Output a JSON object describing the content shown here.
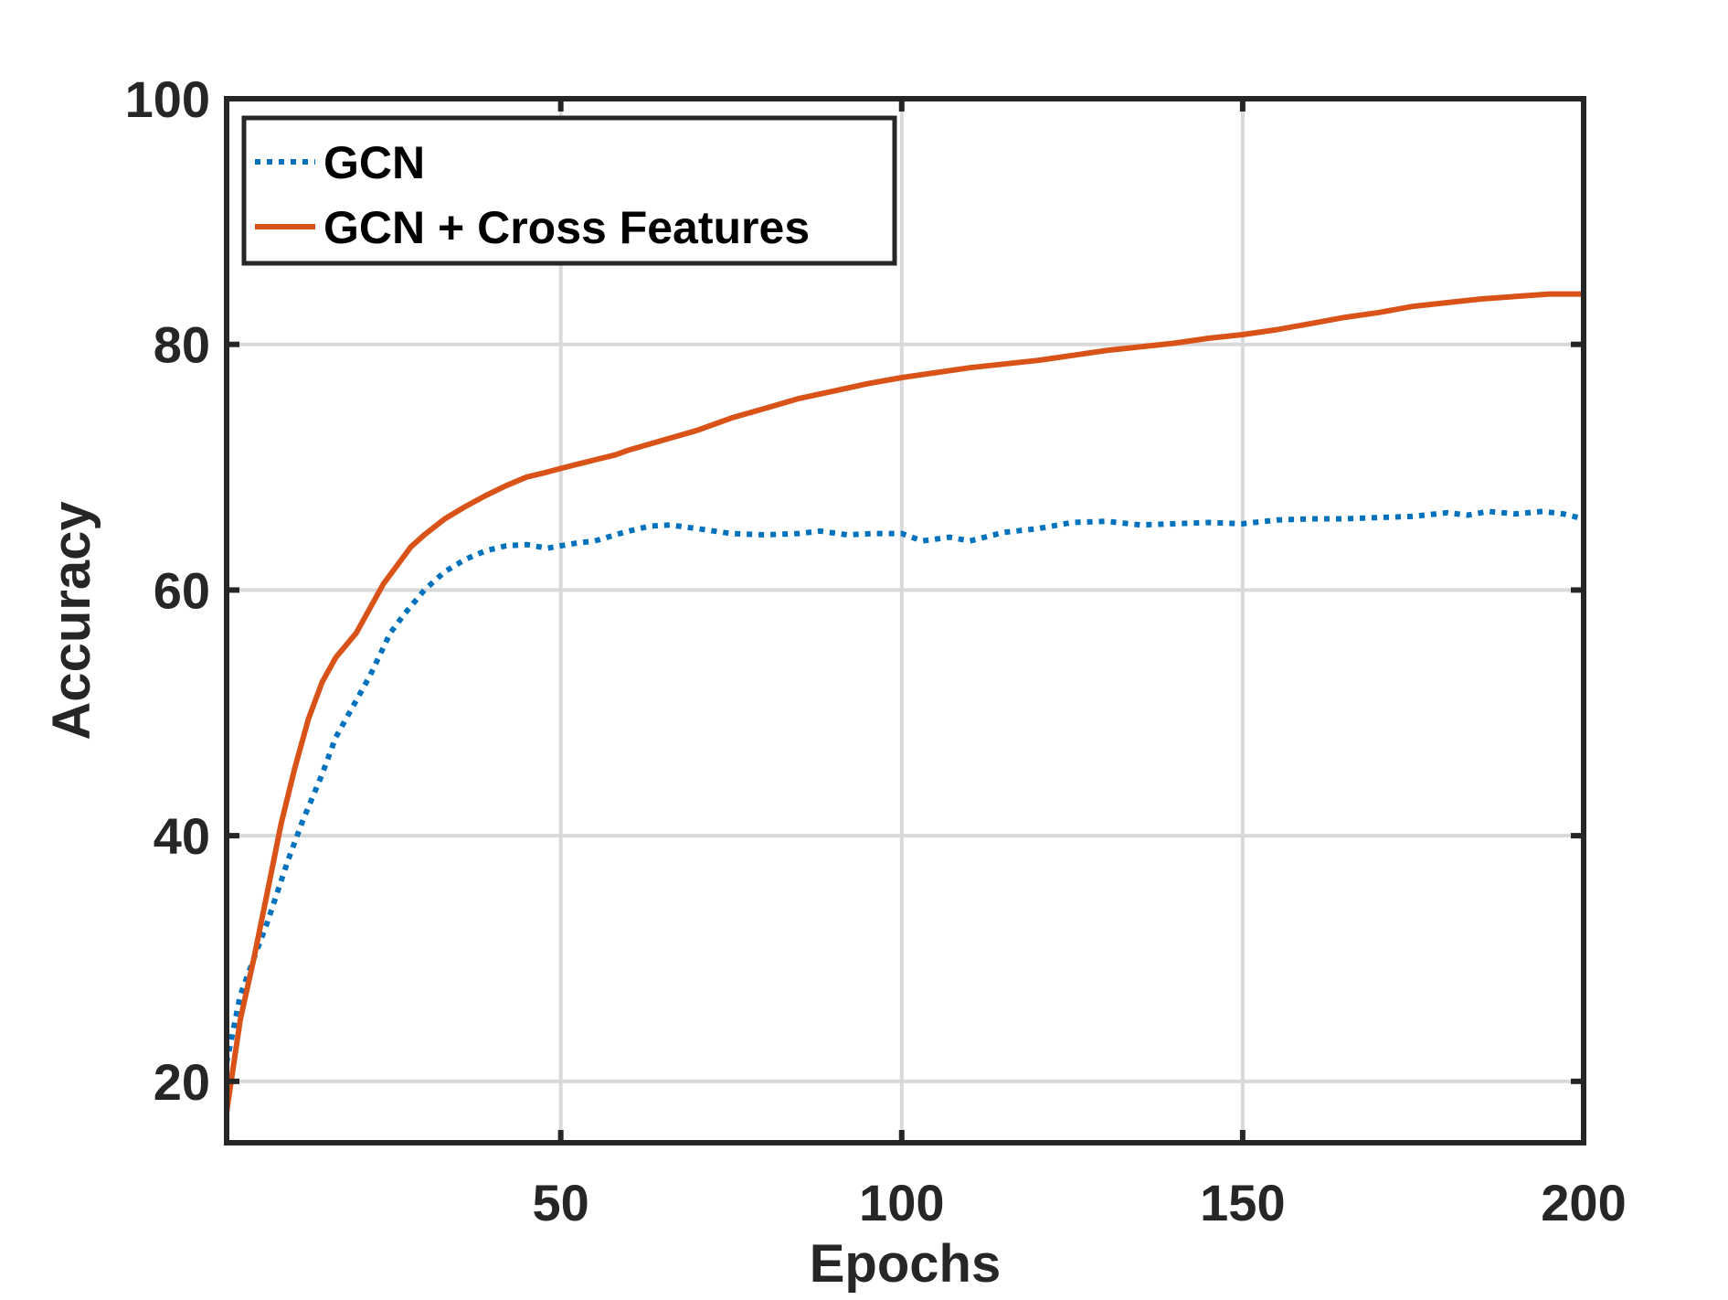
{
  "chart_data": {
    "type": "line",
    "title": "",
    "xlabel": "Epochs",
    "ylabel": "Accuracy",
    "xlim": [
      1,
      200
    ],
    "ylim": [
      15,
      100
    ],
    "xticks": [
      50,
      100,
      150,
      200
    ],
    "yticks": [
      20,
      40,
      60,
      80,
      100
    ],
    "xtick_labels": [
      "50",
      "100",
      "150",
      "200"
    ],
    "ytick_labels": [
      "20",
      "40",
      "60",
      "80",
      "100"
    ],
    "grid": true,
    "legend_position": "top-left",
    "series": [
      {
        "name": "GCN",
        "color": "#0072BD",
        "style": "dotted",
        "x": [
          1,
          3,
          5,
          7,
          10,
          12,
          15,
          17,
          20,
          22,
          25,
          27,
          30,
          33,
          36,
          39,
          42,
          45,
          48,
          50,
          52,
          55,
          58,
          60,
          63,
          66,
          70,
          75,
          80,
          85,
          88,
          92,
          96,
          100,
          103,
          107,
          110,
          115,
          120,
          125,
          130,
          135,
          140,
          145,
          150,
          155,
          160,
          165,
          170,
          175,
          180,
          183,
          186,
          190,
          194,
          197,
          200
        ],
        "y": [
          21.5,
          27,
          30,
          33,
          38,
          41,
          45,
          48,
          51,
          53,
          56.5,
          58,
          60,
          61.5,
          62.5,
          63.2,
          63.6,
          63.7,
          63.4,
          63.6,
          63.8,
          64,
          64.5,
          64.8,
          65.2,
          65.3,
          65,
          64.6,
          64.5,
          64.6,
          64.8,
          64.5,
          64.6,
          64.6,
          64.0,
          64.3,
          64.0,
          64.7,
          65.0,
          65.5,
          65.6,
          65.3,
          65.4,
          65.5,
          65.4,
          65.7,
          65.8,
          65.8,
          65.9,
          66.0,
          66.3,
          66.1,
          66.4,
          66.2,
          66.4,
          66.2,
          65.8
        ]
      },
      {
        "name": "GCN + Cross Features",
        "color": "#D95319",
        "style": "solid",
        "x": [
          1,
          3,
          5,
          7,
          9,
          11,
          13,
          15,
          17,
          20,
          22,
          24,
          26,
          28,
          30,
          33,
          36,
          39,
          42,
          45,
          48,
          50,
          55,
          58,
          60,
          65,
          70,
          75,
          80,
          85,
          90,
          95,
          100,
          105,
          110,
          115,
          120,
          125,
          130,
          135,
          140,
          145,
          150,
          155,
          160,
          165,
          170,
          175,
          180,
          185,
          190,
          195,
          200
        ],
        "y": [
          17.5,
          25,
          30,
          35.5,
          41,
          45.5,
          49.5,
          52.5,
          54.5,
          56.5,
          58.5,
          60.5,
          62,
          63.5,
          64.5,
          65.8,
          66.8,
          67.7,
          68.5,
          69.2,
          69.6,
          69.9,
          70.6,
          71.0,
          71.4,
          72.2,
          73.0,
          74.0,
          74.8,
          75.6,
          76.2,
          76.8,
          77.3,
          77.7,
          78.1,
          78.4,
          78.7,
          79.1,
          79.5,
          79.8,
          80.1,
          80.5,
          80.8,
          81.2,
          81.7,
          82.2,
          82.6,
          83.1,
          83.4,
          83.7,
          83.9,
          84.1,
          84.1
        ]
      }
    ]
  }
}
